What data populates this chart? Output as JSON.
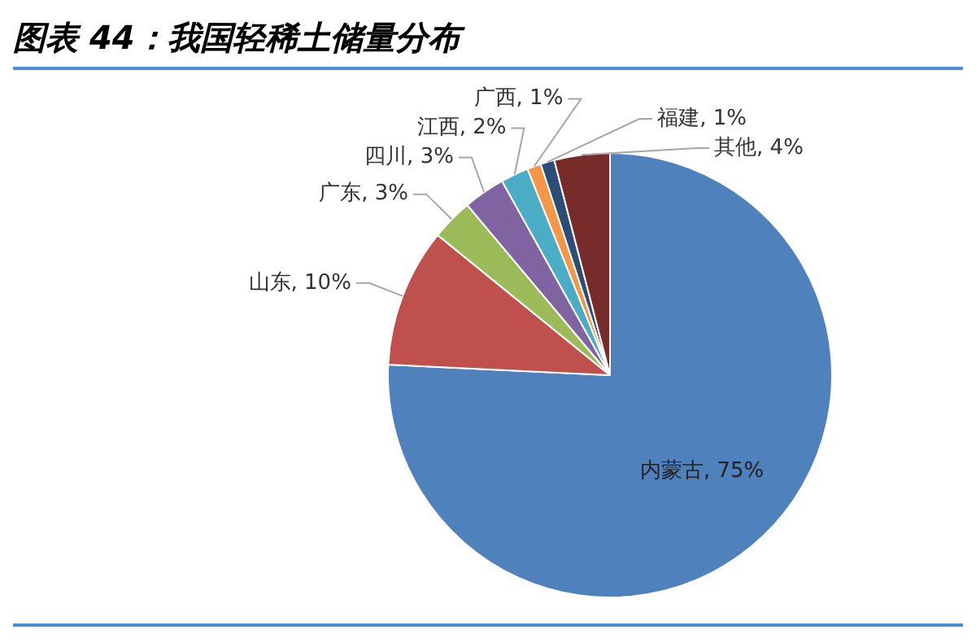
{
  "chart_data": {
    "type": "pie",
    "title": "图表 44：我国轻稀土储量分布",
    "categories": [
      "内蒙古",
      "山东",
      "广东",
      "四川",
      "江西",
      "广西",
      "福建",
      "其他"
    ],
    "values": [
      75,
      10,
      3,
      3,
      2,
      1,
      1,
      4
    ],
    "value_labels": [
      "75%",
      "10%",
      "3%",
      "3%",
      "2%",
      "1%",
      "1%",
      "4%"
    ],
    "colors": [
      "#4f81bd",
      "#c0504d",
      "#9bbb59",
      "#8064a2",
      "#4bacc6",
      "#f79646",
      "#2c4d75",
      "#772c2a"
    ],
    "legend": false
  }
}
